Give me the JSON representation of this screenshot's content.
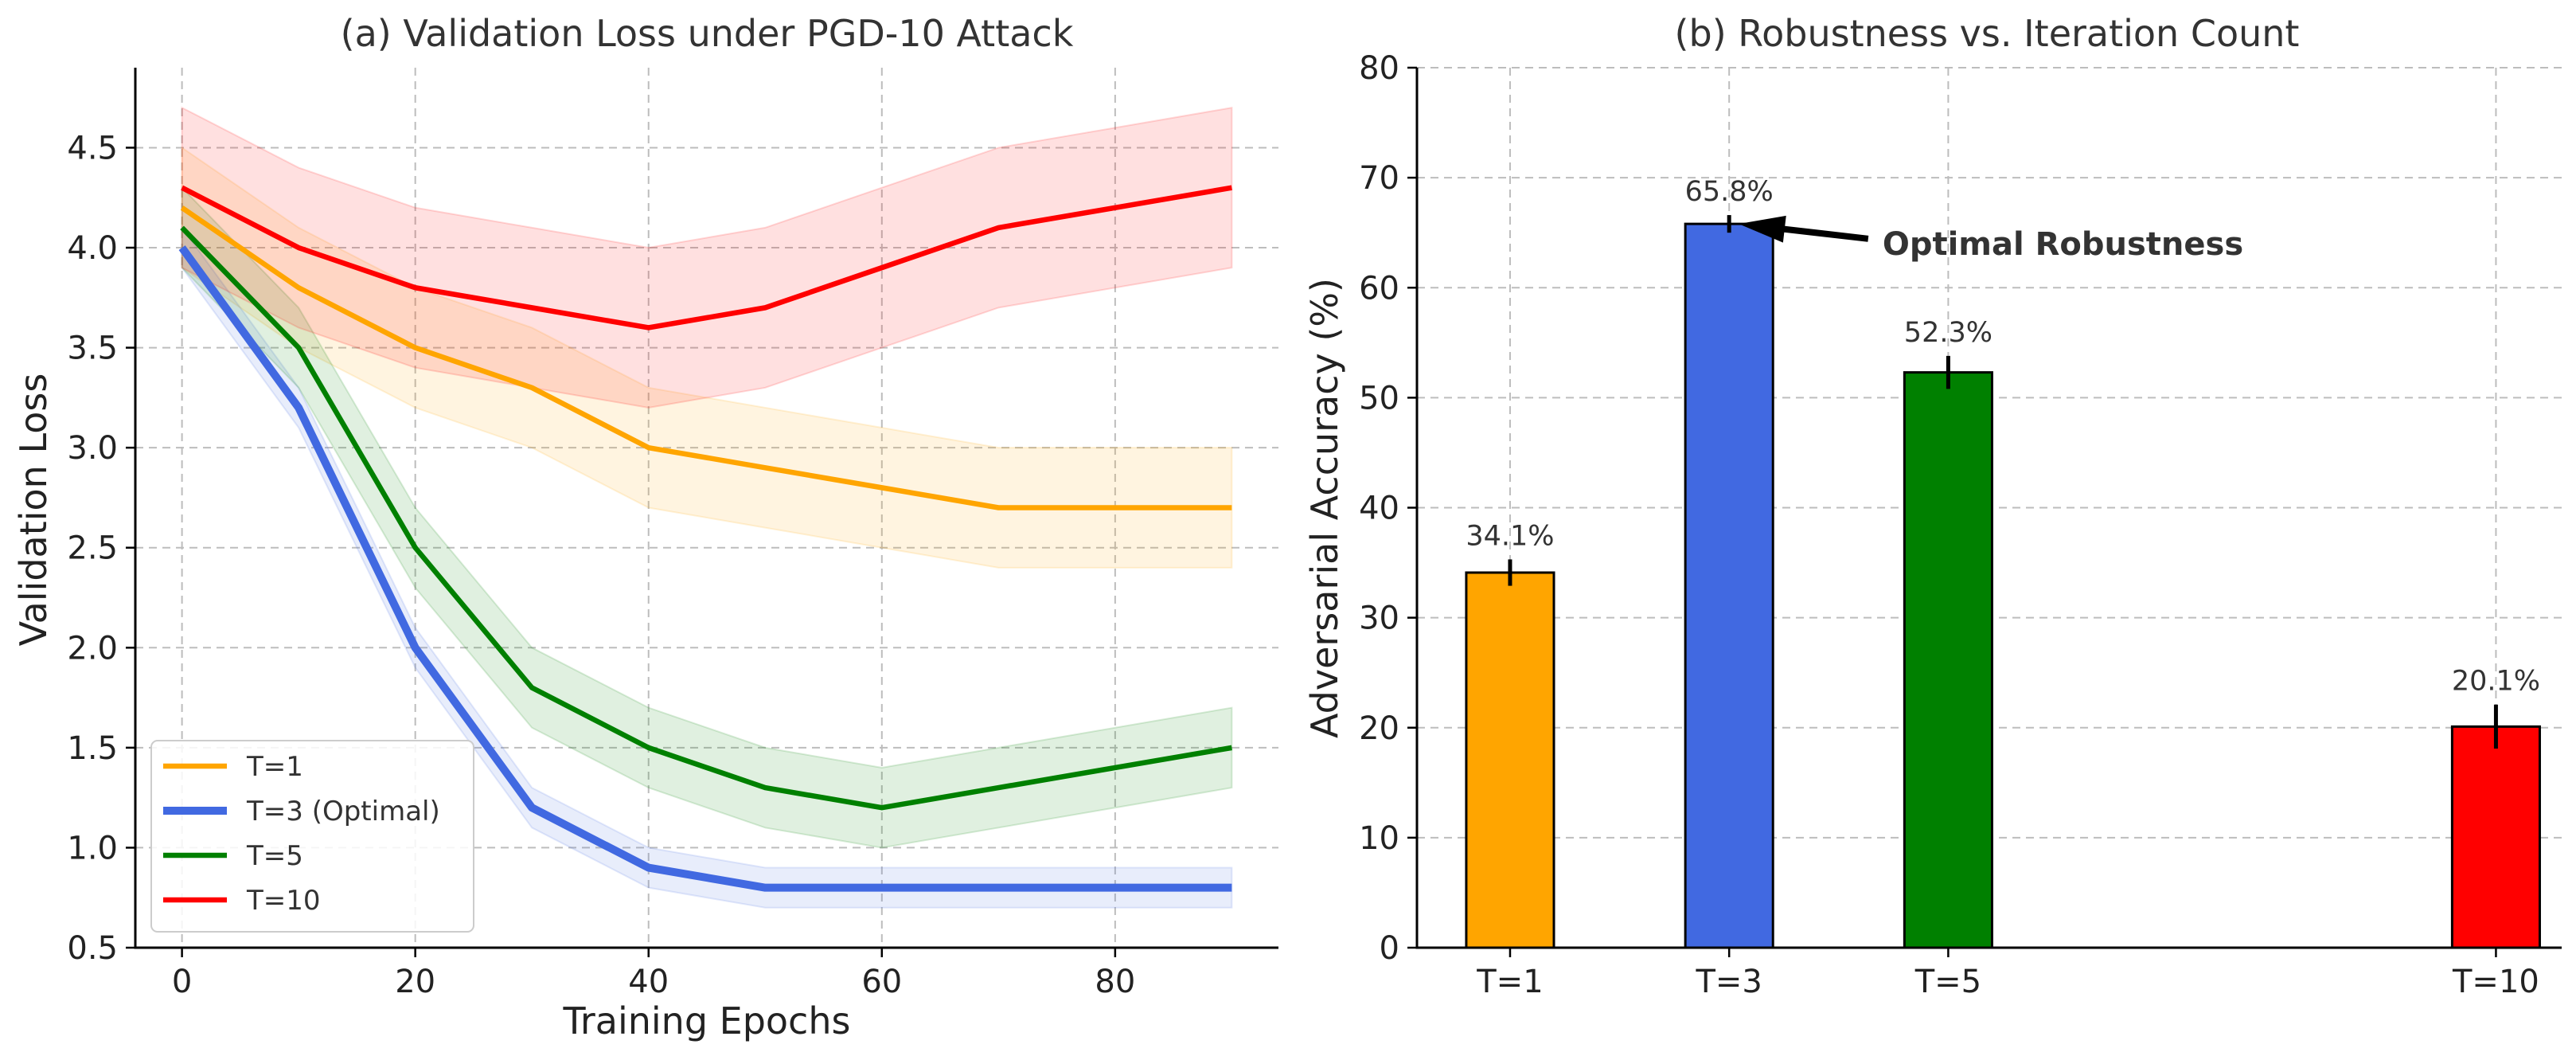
{
  "chart_data": [
    {
      "type": "line",
      "title": "(a) Validation Loss under PGD-10 Attack",
      "xlabel": "Training Epochs",
      "ylabel": "Validation Loss",
      "xlim": [
        -4,
        94
      ],
      "ylim": [
        0.5,
        4.9
      ],
      "xticks": [
        0,
        20,
        40,
        60,
        80
      ],
      "yticks": [
        0.5,
        1.0,
        1.5,
        2.0,
        2.5,
        3.0,
        3.5,
        4.0,
        4.5
      ],
      "grid": true,
      "legend_position": "lower-left",
      "x": [
        0,
        10,
        20,
        30,
        40,
        50,
        60,
        70,
        80,
        90
      ],
      "series": [
        {
          "name": "T=1",
          "color": "#FFA500",
          "values": [
            4.2,
            3.8,
            3.5,
            3.3,
            3.0,
            2.9,
            2.8,
            2.7,
            2.7,
            2.7
          ],
          "band": 0.3
        },
        {
          "name": "T=3 (Optimal)",
          "color": "#4169E1",
          "values": [
            4.0,
            3.2,
            2.0,
            1.2,
            0.9,
            0.8,
            0.8,
            0.8,
            0.8,
            0.8
          ],
          "band": 0.1
        },
        {
          "name": "T=5",
          "color": "#008000",
          "values": [
            4.1,
            3.5,
            2.5,
            1.8,
            1.5,
            1.3,
            1.2,
            1.3,
            1.4,
            1.5
          ],
          "band": 0.2
        },
        {
          "name": "T=10",
          "color": "#FF0000",
          "values": [
            4.3,
            4.0,
            3.8,
            3.7,
            3.6,
            3.7,
            3.9,
            4.1,
            4.2,
            4.3
          ],
          "band": 0.4
        }
      ]
    },
    {
      "type": "bar",
      "title": "(b) Robustness vs. Iteration Count",
      "xlabel": "",
      "ylabel": "Adversarial Accuracy (%)",
      "ylim": [
        0,
        80
      ],
      "yticks": [
        0,
        10,
        20,
        30,
        40,
        50,
        60,
        70,
        80
      ],
      "grid": true,
      "categories": [
        "T=1",
        "T=3",
        "T=5",
        "T=10"
      ],
      "x_positions": [
        1,
        3,
        5,
        10
      ],
      "values": [
        34.1,
        65.8,
        52.3,
        20.1
      ],
      "errors": [
        1.2,
        0.8,
        1.5,
        2.0
      ],
      "labels": [
        "34.1%",
        "65.8%",
        "52.3%",
        "20.1%"
      ],
      "colors": [
        "#FFA500",
        "#4169E1",
        "#008000",
        "#FF0000"
      ],
      "annotation": {
        "text": "Optimal Robustness",
        "target": "T=3",
        "text_at": [
          4.4,
          63.0
        ]
      }
    }
  ]
}
